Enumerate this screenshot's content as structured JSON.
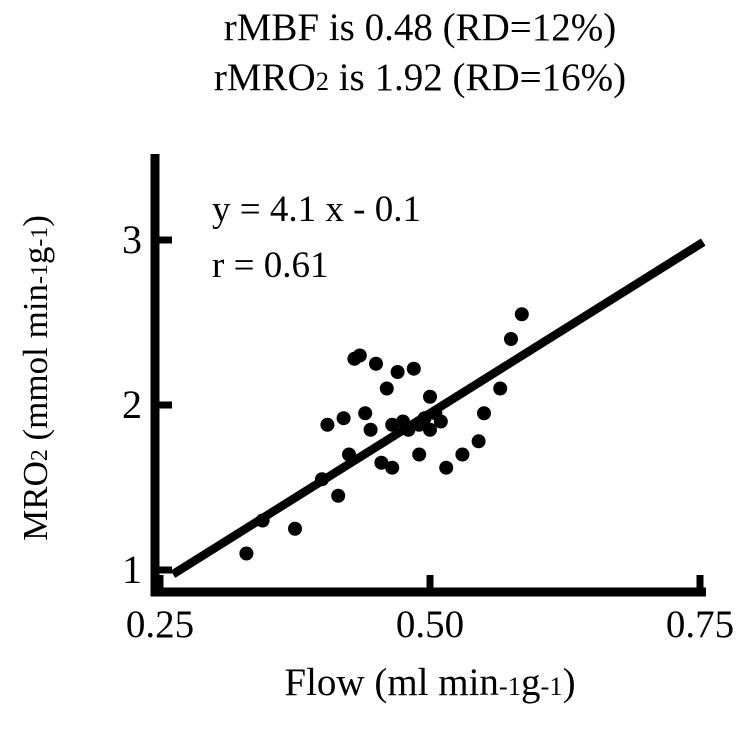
{
  "figure": {
    "title_line1": [
      {
        "t": "rMBF is 0.48 (RD=12%)"
      }
    ],
    "title_line2": [
      {
        "t": "rMRO"
      },
      {
        "t": "2",
        "s": "sub"
      },
      {
        "t": " is 1.92 (RD=16%)"
      }
    ],
    "y_axis_label": [
      {
        "t": "MRO"
      },
      {
        "t": "2",
        "s": "sub"
      },
      {
        "t": " (mmol min"
      },
      {
        "t": "-1",
        "s": "sup"
      },
      {
        "t": "g"
      },
      {
        "t": "-1",
        "s": "sup"
      },
      {
        "t": ")"
      }
    ],
    "x_axis_label": [
      {
        "t": "Flow (ml min"
      },
      {
        "t": "-1",
        "s": "sup"
      },
      {
        "t": "g"
      },
      {
        "t": "-1",
        "s": "sup"
      },
      {
        "t": ")"
      }
    ],
    "annotation_equation": "y = 4.1 x - 0.1",
    "annotation_r": "r = 0.61"
  },
  "chart_data": {
    "type": "scatter",
    "title": "rMBF is 0.48 (RD=12%); rMRO2 is 1.92 (RD=16%)",
    "xlabel": "Flow (ml min^-1 g^-1)",
    "ylabel": "MRO2 (mmol min^-1 g^-1)",
    "xlim": [
      0.25,
      0.76
    ],
    "ylim": [
      0.9,
      3.4
    ],
    "x_ticks": [
      0.25,
      0.5,
      0.75
    ],
    "x_tick_labels": [
      "0.25",
      "0.50",
      "0.75"
    ],
    "y_ticks": [
      1,
      2,
      3
    ],
    "y_tick_labels": [
      "1",
      "2",
      "3"
    ],
    "grid": false,
    "legend": "none",
    "points": [
      [
        0.33,
        1.1
      ],
      [
        0.345,
        1.3
      ],
      [
        0.375,
        1.25
      ],
      [
        0.4,
        1.55
      ],
      [
        0.405,
        1.88
      ],
      [
        0.415,
        1.45
      ],
      [
        0.42,
        1.92
      ],
      [
        0.425,
        1.7
      ],
      [
        0.43,
        2.28
      ],
      [
        0.435,
        2.3
      ],
      [
        0.44,
        1.95
      ],
      [
        0.445,
        1.85
      ],
      [
        0.45,
        2.25
      ],
      [
        0.455,
        1.65
      ],
      [
        0.46,
        2.1
      ],
      [
        0.465,
        1.88
      ],
      [
        0.465,
        1.62
      ],
      [
        0.47,
        2.2
      ],
      [
        0.475,
        1.9
      ],
      [
        0.48,
        1.85
      ],
      [
        0.485,
        2.22
      ],
      [
        0.49,
        1.88
      ],
      [
        0.49,
        1.7
      ],
      [
        0.495,
        1.92
      ],
      [
        0.5,
        2.05
      ],
      [
        0.5,
        1.85
      ],
      [
        0.505,
        1.95
      ],
      [
        0.51,
        1.9
      ],
      [
        0.515,
        1.62
      ],
      [
        0.53,
        1.7
      ],
      [
        0.545,
        1.78
      ],
      [
        0.55,
        1.95
      ],
      [
        0.565,
        2.1
      ],
      [
        0.575,
        2.4
      ],
      [
        0.585,
        2.55
      ]
    ],
    "fit_line": {
      "equation": "y = 4.1 x - 0.1",
      "slope": 4.1,
      "intercept": -0.1,
      "x_start": 0.262,
      "x_end": 0.753
    },
    "r_value": 0.61,
    "colors": {
      "ink": "#000000",
      "background": "#ffffff"
    }
  }
}
